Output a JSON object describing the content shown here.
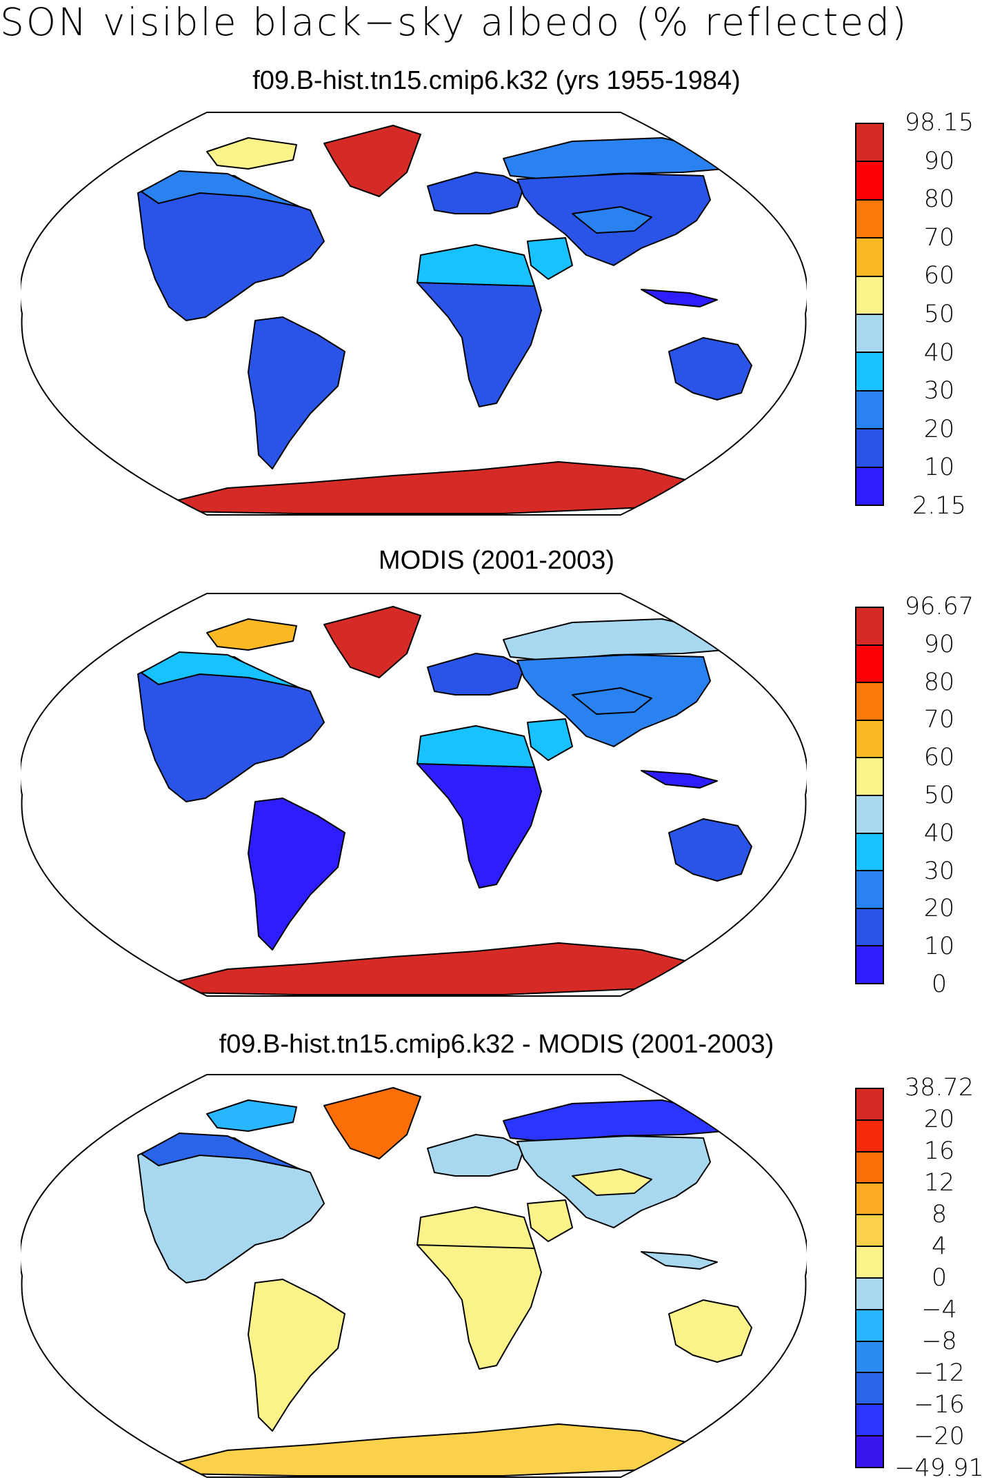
{
  "title": "SON visible black−sky albedo (% reflected)",
  "colors": {
    "land_mask": "#ffffff",
    "outline": "#000000",
    "abs_palette": [
      "#2e1dff",
      "#2a54e8",
      "#2a82f0",
      "#17c2ff",
      "#a8d8ef",
      "#fbf38a",
      "#fab923",
      "#fc7b08",
      "#fc0205",
      "#d62a26"
    ],
    "diff_palette": [
      "#3915f0",
      "#2a35ff",
      "#2a64e8",
      "#2a8cf0",
      "#27b6ff",
      "#a8d8ef",
      "#fbf38a",
      "#fbd04a",
      "#fbaa23",
      "#fc6f08",
      "#f52a0a",
      "#d62a26"
    ]
  },
  "panels": [
    {
      "title": "f09.B-hist.tn15.cmip6.k32 (yrs 1955-1984)",
      "colorbar": {
        "labels": [
          "98.15",
          "90",
          "80",
          "70",
          "60",
          "50",
          "40",
          "30",
          "20",
          "10",
          "2.15"
        ],
        "min": 2.15,
        "max": 98.15
      },
      "regions": {
        "greenland": 98,
        "antarctica": 98,
        "north_america": 12,
        "canada_north": 25,
        "arctic_islands": 55,
        "south_america": 12,
        "sahara": 35,
        "africa": 10,
        "europe": 12,
        "siberia": 25,
        "asia": 18,
        "tibet": 28,
        "arabia": 32,
        "australia": 18,
        "indonesia": 8
      }
    },
    {
      "title": "MODIS (2001-2003)",
      "colorbar": {
        "labels": [
          "96.67",
          "90",
          "80",
          "70",
          "60",
          "50",
          "40",
          "30",
          "20",
          "10",
          "0"
        ],
        "min": 0,
        "max": 96.67
      },
      "regions": {
        "greenland": 92,
        "antarctica": 95,
        "north_america": 10,
        "canada_north": 30,
        "arctic_islands": 62,
        "south_america": 8,
        "sahara": 35,
        "africa": 8,
        "europe": 15,
        "siberia": 45,
        "asia": 20,
        "tibet": 25,
        "arabia": 32,
        "australia": 12,
        "indonesia": 6
      }
    },
    {
      "title": "f09.B-hist.tn15.cmip6.k32 - MODIS (2001-2003)",
      "colorbar": {
        "labels": [
          "38.72",
          "20",
          "16",
          "12",
          "8",
          "4",
          "0",
          "−4",
          "−8",
          "−12",
          "−16",
          "−20",
          "−49.91"
        ],
        "min": -49.91,
        "max": 38.72
      },
      "regions": {
        "greenland": 13,
        "antarctica": 6,
        "north_america": -3,
        "canada_north": -14,
        "arctic_islands": -6,
        "south_america": 2,
        "sahara": 2,
        "africa": 2,
        "europe": -4,
        "siberia": -18,
        "asia": -2,
        "tibet": 3,
        "arabia": 1,
        "australia": 3,
        "indonesia": -3
      }
    }
  ]
}
